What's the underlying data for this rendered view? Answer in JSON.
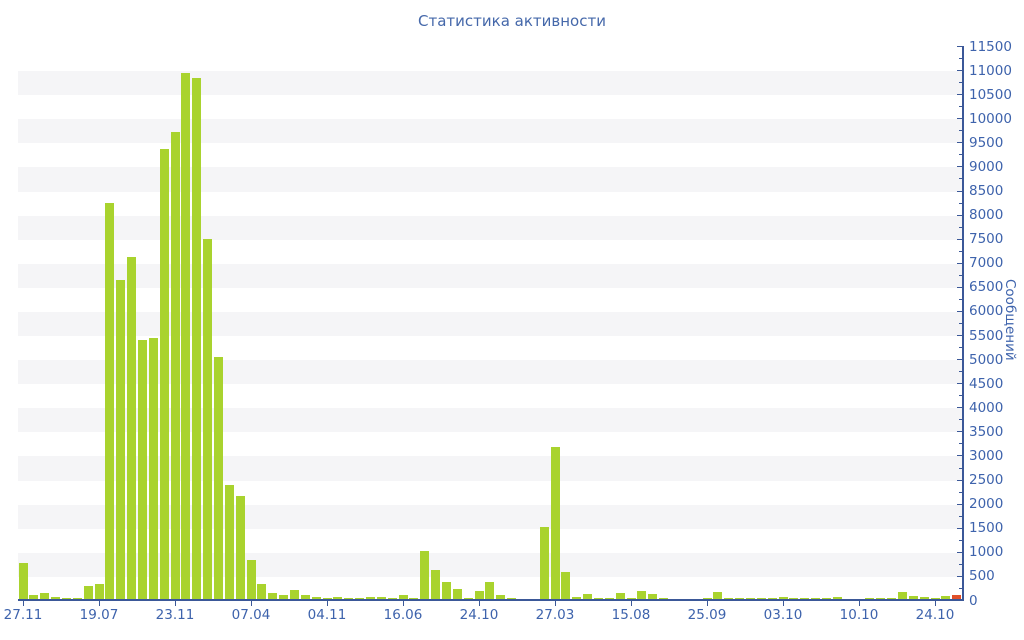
{
  "chart_data": {
    "type": "bar",
    "title": "Статистика активности",
    "ylabel": "Сообщений",
    "xlabel": "",
    "ylim": [
      0,
      11500
    ],
    "y_tick_step": 500,
    "y_minor_tick_step": 250,
    "y_tick_labels": [
      "0",
      "500",
      "1000",
      "1500",
      "2000",
      "2500",
      "3000",
      "3500",
      "4000",
      "4500",
      "5000",
      "5500",
      "6000",
      "6500",
      "7000",
      "7500",
      "8000",
      "8500",
      "9000",
      "9500",
      "10000",
      "10500",
      "11000",
      "11500"
    ],
    "x_tick_labels": [
      "27.11",
      "19.07",
      "23.11",
      "07.04",
      "04.11",
      "16.06",
      "24.10",
      "27.03",
      "15.08",
      "25.09",
      "03.10",
      "10.10",
      "24.10"
    ],
    "x_label_every_n_bars": 7,
    "grid": "alternating horizontal bands, legend off",
    "legend": null,
    "values": [
      770,
      100,
      150,
      70,
      35,
      40,
      290,
      330,
      8250,
      6640,
      7110,
      5400,
      5440,
      9360,
      9720,
      10940,
      10840,
      7500,
      5040,
      2390,
      2160,
      820,
      330,
      145,
      110,
      215,
      100,
      60,
      50,
      70,
      50,
      50,
      60,
      55,
      45,
      100,
      40,
      1020,
      620,
      370,
      230,
      50,
      190,
      380,
      110,
      50,
      20,
      30,
      1520,
      3170,
      580,
      70,
      125,
      35,
      35,
      140,
      35,
      185,
      120,
      35,
      30,
      30,
      25,
      50,
      160,
      50,
      35,
      50,
      35,
      50,
      60,
      50,
      35,
      50,
      50,
      60,
      30,
      25,
      50,
      35,
      50,
      170,
      90,
      60,
      35,
      85,
      110
    ],
    "last_bar_is_highlighted": true
  },
  "colors": {
    "background": "#ffffff",
    "band_fill": "#f5f5f7",
    "bar_green": "#a9d32e",
    "bar_red": "#e0502a",
    "axis_line": "#3b5898",
    "axis_text": "#3e63ac",
    "title_text": "#4568aa"
  }
}
